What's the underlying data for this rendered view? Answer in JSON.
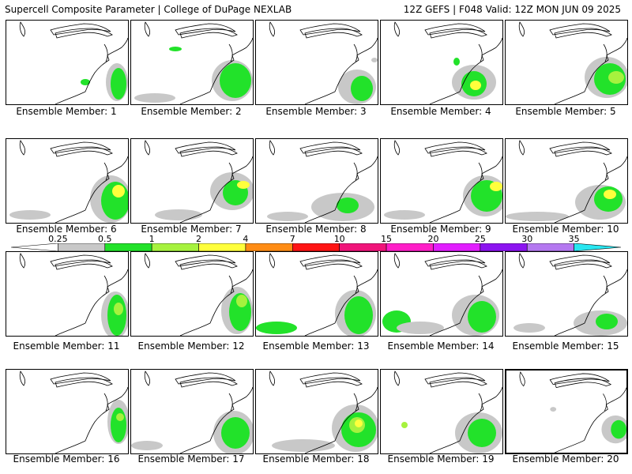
{
  "header": {
    "title": "Supercell Composite Parameter | College of DuPage NEXLAB",
    "run_info": "12Z GEFS | F048 Valid: 12Z MON JUN 09 2025"
  },
  "colorbar": {
    "labels": [
      "0.25",
      "0.5",
      "1",
      "2",
      "4",
      "7",
      "10",
      "15",
      "20",
      "25",
      "30",
      "35"
    ],
    "colors": [
      "#ffffff",
      "#c8c8c8",
      "#22e22a",
      "#a6f23e",
      "#ffff3c",
      "#ff8c14",
      "#ff1414",
      "#f0147a",
      "#ff1ec8",
      "#e21eff",
      "#8c14f0",
      "#b478f0",
      "#28e6f0"
    ]
  },
  "members": [
    {
      "label": "Ensemble Member: 1"
    },
    {
      "label": "Ensemble Member: 2"
    },
    {
      "label": "Ensemble Member: 3"
    },
    {
      "label": "Ensemble Member: 4"
    },
    {
      "label": "Ensemble Member: 5"
    },
    {
      "label": "Ensemble Member: 6"
    },
    {
      "label": "Ensemble Member: 7"
    },
    {
      "label": "Ensemble Member: 8"
    },
    {
      "label": "Ensemble Member: 9"
    },
    {
      "label": "Ensemble Member: 10"
    },
    {
      "label": "Ensemble Member: 11"
    },
    {
      "label": "Ensemble Member: 12"
    },
    {
      "label": "Ensemble Member: 13"
    },
    {
      "label": "Ensemble Member: 14"
    },
    {
      "label": "Ensemble Member: 15"
    },
    {
      "label": "Ensemble Member: 16"
    },
    {
      "label": "Ensemble Member: 17"
    },
    {
      "label": "Ensemble Member: 18"
    },
    {
      "label": "Ensemble Member: 19"
    },
    {
      "label": "Ensemble Member: 20",
      "highlighted": true
    }
  ],
  "colors": {
    "gray": "#c8c8c8",
    "green": "#22e22a",
    "light_green": "#a6f23e",
    "yellow": "#ffff3c"
  }
}
